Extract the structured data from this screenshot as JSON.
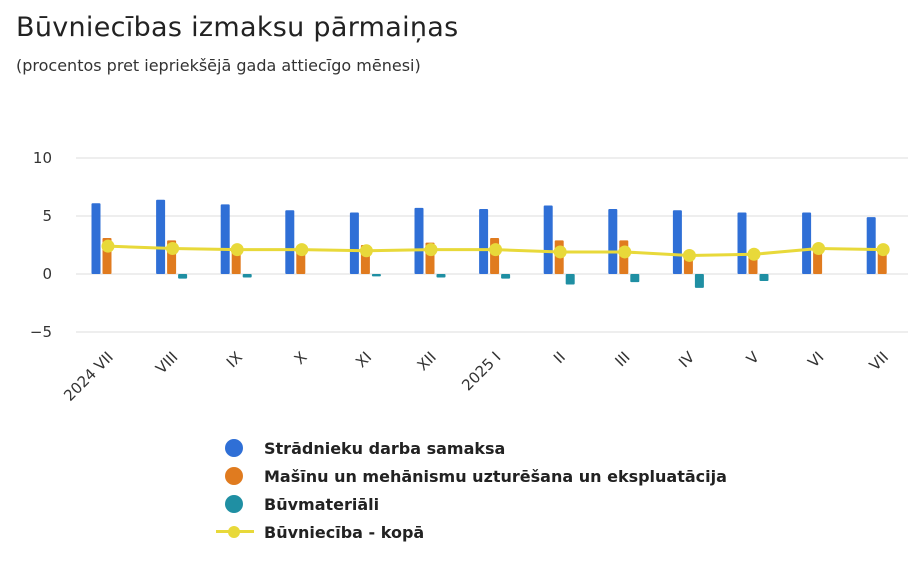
{
  "title": "Būvniecības izmaksu pārmaiņas",
  "subtitle": "(procentos pret iepriekšējā gada attiecīgo mēnesi)",
  "chart_data": {
    "type": "bar",
    "categories": [
      "2024 VII",
      "VIII",
      "IX",
      "X",
      "XI",
      "XII",
      "2025 I",
      "II",
      "III",
      "IV",
      "V",
      "VI",
      "VII"
    ],
    "ylim": [
      -5,
      10
    ],
    "yticks": [
      10,
      5,
      0,
      -5
    ],
    "ytick_labels": [
      "10",
      "5",
      "0",
      "−5"
    ],
    "grid": true,
    "legend_position": "bottom",
    "series": [
      {
        "name": "Strādnieku darba samaksa",
        "type": "bar",
        "color": "#2f6fd6",
        "values": [
          6.1,
          6.4,
          6.0,
          5.5,
          5.3,
          5.7,
          5.6,
          5.9,
          5.6,
          5.5,
          5.3,
          5.3,
          4.9
        ]
      },
      {
        "name": "Mašīnu un mehānismu uzturēšana un ekspluatācija",
        "type": "bar",
        "color": "#e07b1f",
        "values": [
          3.1,
          2.9,
          2.3,
          2.2,
          2.5,
          2.7,
          3.1,
          2.9,
          2.9,
          1.8,
          1.9,
          2.3,
          2.1
        ]
      },
      {
        "name": "Būvmateriāli",
        "type": "bar",
        "color": "#1f8fa3",
        "values": [
          0.0,
          -0.4,
          -0.3,
          0.0,
          -0.2,
          -0.3,
          -0.4,
          -0.9,
          -0.7,
          -1.2,
          -0.6,
          0.0,
          0.0
        ]
      },
      {
        "name": "Būvniecība - kopā",
        "type": "line",
        "color": "#e8d93a",
        "values": [
          2.4,
          2.2,
          2.1,
          2.1,
          2.0,
          2.1,
          2.1,
          1.9,
          1.9,
          1.6,
          1.7,
          2.2,
          2.1
        ]
      }
    ]
  }
}
